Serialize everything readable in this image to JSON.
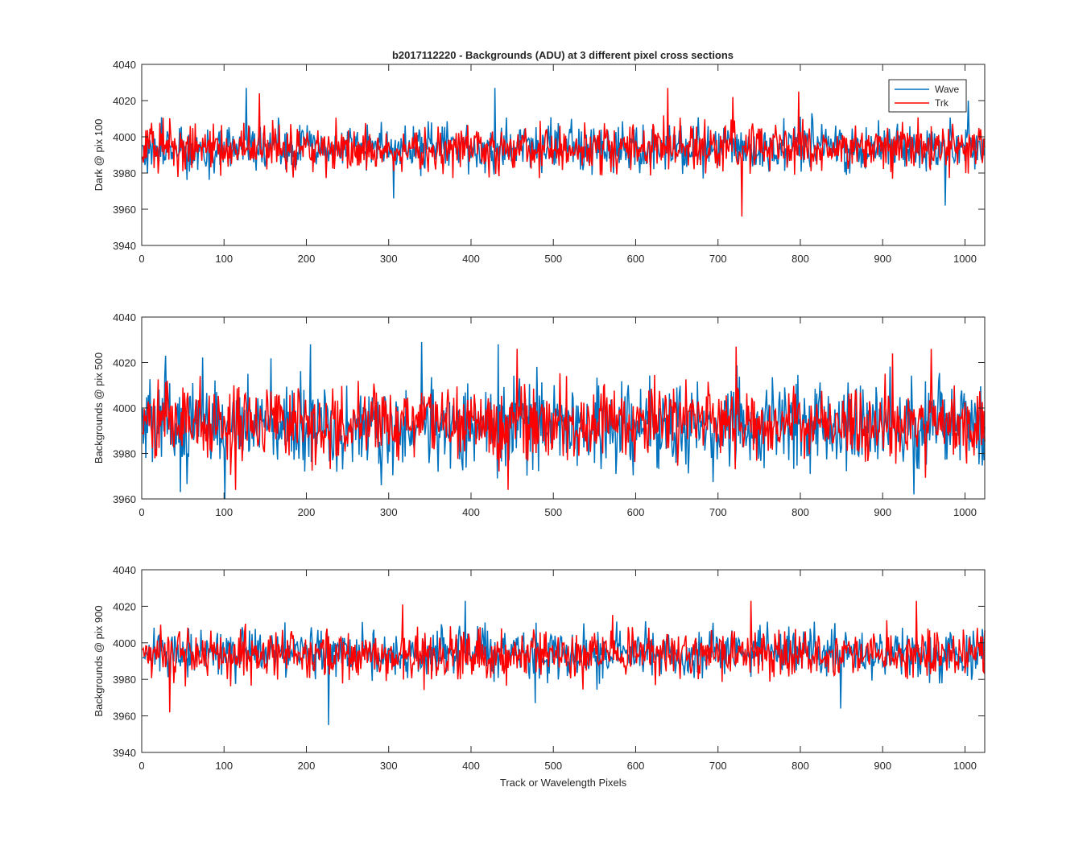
{
  "figure": {
    "title": "b2017112220 - Backgrounds (ADU) at 3 different pixel cross sections"
  },
  "chart_data": [
    {
      "type": "line",
      "title": "b2017112220 - Backgrounds (ADU) at 3 different pixel cross sections",
      "xlabel": "",
      "ylabel": "Dark @ pix 100",
      "xlim": [
        0,
        1024
      ],
      "ylim": [
        3940,
        4040
      ],
      "xticks": [
        0,
        100,
        200,
        300,
        400,
        500,
        600,
        700,
        800,
        900,
        1000
      ],
      "yticks": [
        3940,
        3960,
        3980,
        4000,
        4020,
        4040
      ],
      "legend": {
        "entries": [
          "Wave",
          "Trk"
        ],
        "location": "top-right"
      },
      "series": [
        {
          "name": "Wave",
          "color": "#0072BD",
          "description": "noisy signal, 1024 samples, mean ~3994 ADU, std ~6.5 ADU",
          "mean": 3994,
          "std": 6.5,
          "n": 1024,
          "seed": 101,
          "spikes": [
            [
              126,
              4027
            ],
            [
              428,
              4027
            ],
            [
              305,
              3966
            ],
            [
              975,
              3962
            ],
            [
              1003,
              4020
            ]
          ]
        },
        {
          "name": "Trk",
          "color": "#FF0000",
          "description": "noisy signal, 1024 samples, mean ~3994 ADU, std ~6.5 ADU",
          "mean": 3994,
          "std": 6.5,
          "n": 1024,
          "seed": 202,
          "spikes": [
            [
              142,
              4024
            ],
            [
              638,
              4027
            ],
            [
              728,
              3956
            ],
            [
              797,
              4025
            ],
            [
              717,
              4022
            ]
          ]
        }
      ]
    },
    {
      "type": "line",
      "title": "",
      "xlabel": "",
      "ylabel": "Backgrounds @ pix 500",
      "xlim": [
        0,
        1024
      ],
      "ylim": [
        3960,
        4040
      ],
      "xticks": [
        0,
        100,
        200,
        300,
        400,
        500,
        600,
        700,
        800,
        900,
        1000
      ],
      "yticks": [
        3960,
        3980,
        4000,
        4020,
        4040
      ],
      "series": [
        {
          "name": "Wave",
          "color": "#0072BD",
          "description": "noisy signal, 1024 samples, mean ~3992 ADU, std ~9 ADU",
          "mean": 3992,
          "std": 9,
          "n": 1024,
          "seed": 303,
          "spikes": [
            [
              28,
              4023
            ],
            [
              204,
              4028
            ],
            [
              339,
              4029
            ],
            [
              432,
              4028
            ],
            [
              46,
              3963
            ],
            [
              100,
              3960
            ],
            [
              937,
              3962
            ]
          ]
        },
        {
          "name": "Trk",
          "color": "#FF0000",
          "description": "noisy signal, 1024 samples, mean ~3993 ADU, std ~8 ADU",
          "mean": 3993,
          "std": 8,
          "n": 1024,
          "seed": 404,
          "spikes": [
            [
              455,
              4026
            ],
            [
              721,
              4027
            ],
            [
              958,
              4026
            ],
            [
              113,
              3964
            ],
            [
              444,
              3964
            ],
            [
              911,
              4024
            ]
          ]
        }
      ]
    },
    {
      "type": "line",
      "title": "",
      "xlabel": "Track or Wavelength Pixels",
      "ylabel": "Backgrounds @ pix 900",
      "xlim": [
        0,
        1024
      ],
      "ylim": [
        3940,
        4040
      ],
      "xticks": [
        0,
        100,
        200,
        300,
        400,
        500,
        600,
        700,
        800,
        900,
        1000
      ],
      "yticks": [
        3940,
        3960,
        3980,
        4000,
        4020,
        4040
      ],
      "series": [
        {
          "name": "Wave",
          "color": "#0072BD",
          "description": "noisy signal, 1024 samples, mean ~3994 ADU, std ~6.5 ADU",
          "mean": 3994,
          "std": 6.5,
          "n": 1024,
          "seed": 505,
          "spikes": [
            [
              226,
              3955
            ],
            [
              392,
              4023
            ],
            [
              848,
              3964
            ],
            [
              477,
              3967
            ]
          ]
        },
        {
          "name": "Trk",
          "color": "#FF0000",
          "description": "noisy signal, 1024 samples, mean ~3994 ADU, std ~6.5 ADU",
          "mean": 3994,
          "std": 6.5,
          "n": 1024,
          "seed": 606,
          "spikes": [
            [
              33,
              3962
            ],
            [
              739,
              4023
            ],
            [
              940,
              4023
            ],
            [
              316,
              4021
            ]
          ]
        }
      ]
    }
  ]
}
